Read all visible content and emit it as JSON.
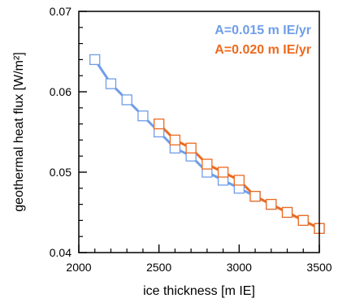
{
  "chart_data": {
    "type": "line",
    "xlabel": "ice thickness  [m IE]",
    "ylabel": "geothermal heat flux  [W/m²]",
    "xlim": [
      2000,
      3500
    ],
    "ylim": [
      0.04,
      0.07
    ],
    "xticks": [
      2000,
      2500,
      3000,
      3500
    ],
    "yticks": [
      0.04,
      0.05,
      0.06,
      0.07
    ],
    "x_minor_step": 100,
    "y_minor_step": 0.002,
    "grid": false,
    "legend_position": "top-right",
    "series": [
      {
        "name": "A=0.015 m IE/yr",
        "color": "#6f9ee8",
        "marker": "open-square",
        "x": [
          2100,
          2200,
          2300,
          2400,
          2500,
          2600,
          2700,
          2800,
          2900,
          3000,
          3100,
          3200,
          3300,
          3400,
          3500
        ],
        "y": [
          0.064,
          0.061,
          0.059,
          0.057,
          0.055,
          0.053,
          0.052,
          0.05,
          0.049,
          0.048,
          0.047,
          0.046,
          0.045,
          0.044,
          0.043
        ]
      },
      {
        "name": "A=0.020 m IE/yr",
        "color": "#ee6a1e",
        "marker": "open-square",
        "x": [
          2500,
          2600,
          2700,
          2800,
          2900,
          3000,
          3100,
          3200,
          3300,
          3400,
          3500
        ],
        "y": [
          0.056,
          0.054,
          0.053,
          0.051,
          0.05,
          0.049,
          0.047,
          0.046,
          0.045,
          0.044,
          0.043
        ]
      }
    ]
  }
}
